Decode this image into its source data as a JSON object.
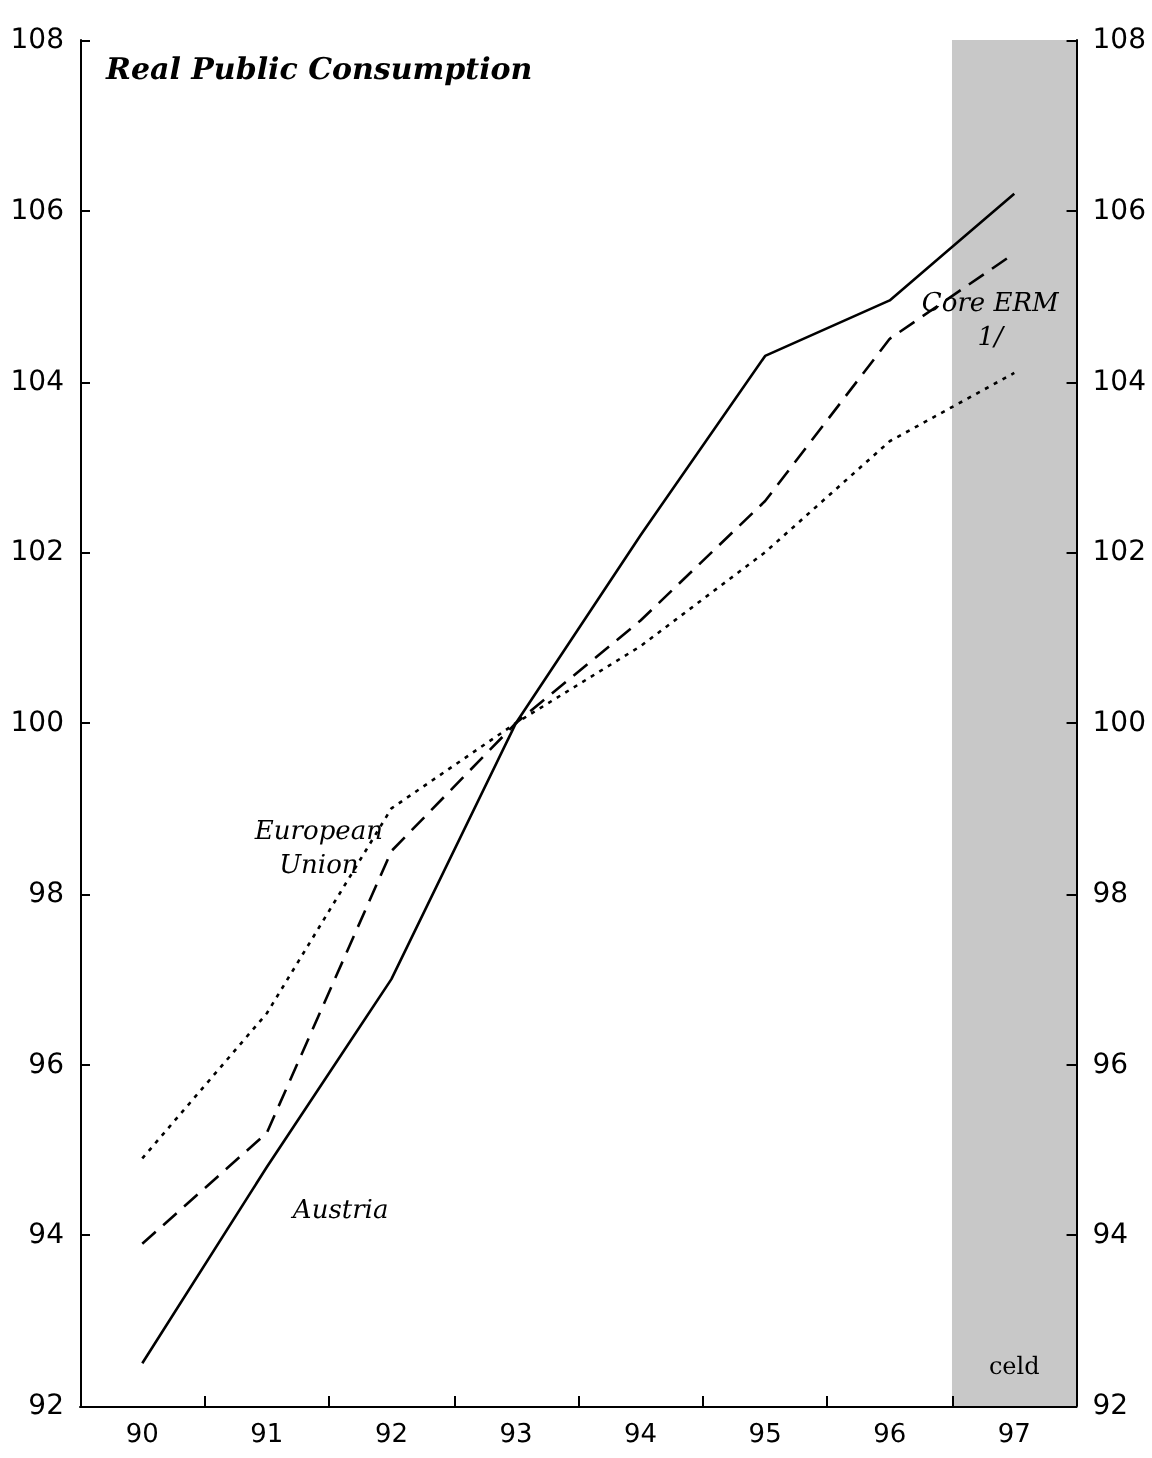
{
  "chart_data": {
    "type": "line",
    "title": "Real Public Consumption",
    "categories": [
      "90",
      "91",
      "92",
      "93",
      "94",
      "95",
      "96",
      "97"
    ],
    "series": [
      {
        "name": "Austria",
        "color": "#000000",
        "line_style": "solid",
        "values": [
          92.5,
          94.8,
          97.0,
          100,
          102.2,
          104.3,
          104.95,
          106.2
        ]
      },
      {
        "name": "Core ERM 1/",
        "color": "#000000",
        "line_style": "dashed",
        "values": [
          93.9,
          95.2,
          98.5,
          100,
          101.2,
          102.6,
          104.5,
          105.5
        ]
      },
      {
        "name": "European Union",
        "color": "#000000",
        "line_style": "dotted",
        "values": [
          94.9,
          96.6,
          99.0,
          100,
          100.9,
          102.0,
          103.3,
          104.1
        ]
      }
    ],
    "ylim": [
      92,
      108
    ],
    "yticks": [
      92,
      94,
      96,
      98,
      100,
      102,
      104,
      106,
      108
    ],
    "y2lim": [
      92,
      108
    ],
    "y2ticks": [
      92,
      94,
      96,
      98,
      100,
      102,
      104,
      106,
      108
    ],
    "bands": [
      {
        "axis": "x",
        "from": "97",
        "to": "97",
        "label": "celd",
        "color": "#c8c8c8"
      }
    ],
    "grid": false,
    "legend": false,
    "marker": "none"
  }
}
